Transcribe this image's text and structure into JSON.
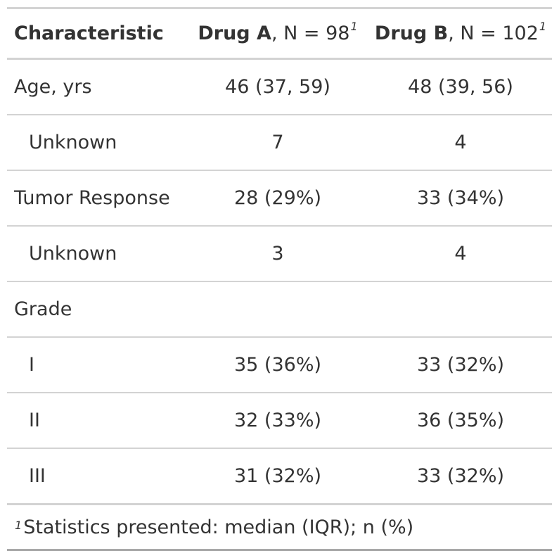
{
  "table": {
    "header": {
      "characteristic": "Characteristic",
      "col1_bold": "Drug A",
      "col1_rest": ", N = 98",
      "col1_mark": "1",
      "col2_bold": "Drug B",
      "col2_rest": ", N = 102",
      "col2_mark": "1"
    },
    "rows": [
      {
        "label": "Age, yrs",
        "a": "46 (37, 59)",
        "b": "48 (39, 56)"
      },
      {
        "label": "Unknown",
        "a": "7",
        "b": "4"
      },
      {
        "label": "Tumor Response",
        "a": "28 (29%)",
        "b": "33 (34%)"
      },
      {
        "label": "Unknown",
        "a": "3",
        "b": "4"
      },
      {
        "label": "Grade",
        "a": "",
        "b": ""
      },
      {
        "label": "I",
        "a": "35 (36%)",
        "b": "33 (32%)"
      },
      {
        "label": "II",
        "a": "32 (33%)",
        "b": "36 (35%)"
      },
      {
        "label": "III",
        "a": "31 (32%)",
        "b": "33 (32%)"
      }
    ],
    "footnote": {
      "mark": "1",
      "text": "Statistics presented: median (IQR); n (%)"
    }
  }
}
